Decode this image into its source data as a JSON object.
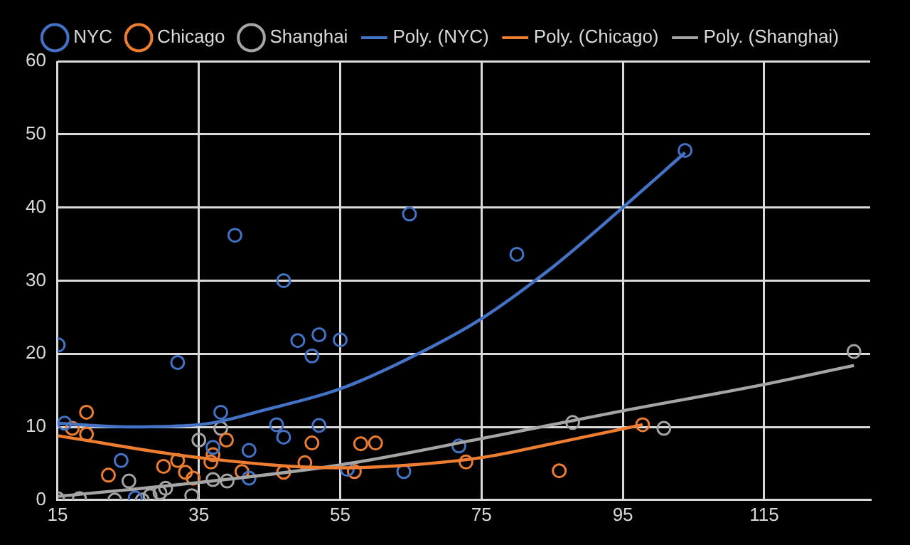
{
  "chart_data": {
    "type": "scatter",
    "xlim": [
      15,
      130
    ],
    "xticks": [
      15,
      35,
      55,
      75,
      95,
      115
    ],
    "ylim": [
      0,
      60
    ],
    "yticks": [
      0,
      10,
      20,
      30,
      40,
      50,
      60
    ],
    "grid": true,
    "legend": "top",
    "series": [
      {
        "name": "NYC",
        "color": "#4472c4",
        "marker": "circle",
        "x": [
          15.1,
          16,
          24,
          26,
          32,
          37,
          38.1,
          40.1,
          42.1,
          42.1,
          46,
          47,
          47,
          49,
          51,
          52,
          52,
          55,
          56,
          64,
          64.8,
          71.8,
          80,
          103.8
        ],
        "values": [
          21.2,
          10.5,
          5.4,
          0.3,
          18.8,
          7.2,
          12,
          36.2,
          6.8,
          3,
          10.3,
          8.6,
          30,
          21.8,
          19.7,
          22.6,
          10.2,
          21.9,
          4.2,
          3.9,
          39.1,
          7.4,
          33.6,
          47.8
        ]
      },
      {
        "name": "Chicago",
        "color": "#ed7d31",
        "marker": "circle",
        "x": [
          17.1,
          19.1,
          19.1,
          22.2,
          30,
          32,
          33.1,
          34.2,
          36.7,
          37,
          38.9,
          41.1,
          47,
          50,
          51,
          57,
          57.9,
          60,
          72.8,
          86,
          97.8
        ],
        "values": [
          9.8,
          12,
          9,
          3.4,
          4.6,
          5.4,
          3.8,
          3,
          5.2,
          6.2,
          8.2,
          3.9,
          3.8,
          5.1,
          7.8,
          3.9,
          7.7,
          7.8,
          5.2,
          4,
          10.3
        ]
      },
      {
        "name": "Shanghai",
        "color": "#a5a5a5",
        "marker": "circle",
        "x": [
          15,
          18.1,
          23.1,
          25.1,
          27,
          28.1,
          29.5,
          30.3,
          34,
          35,
          37,
          38.1,
          39,
          87.9,
          100.8,
          127.7
        ],
        "values": [
          0.2,
          0.2,
          0,
          2.6,
          0,
          0.6,
          1,
          1.6,
          0.6,
          8.2,
          2.8,
          9.8,
          2.6,
          10.6,
          9.8,
          20.3
        ]
      },
      {
        "name": "Poly. (NYC)",
        "type": "line",
        "color": "#4472c4",
        "marker": "none",
        "x": [
          15,
          25,
          35,
          45,
          55,
          65,
          75,
          85,
          95,
          103.8
        ],
        "values": [
          10.5,
          10,
          10.3,
          12.5,
          15.2,
          19.5,
          24.8,
          31.8,
          40,
          47.5
        ]
      },
      {
        "name": "Poly. (Chicago)",
        "type": "line",
        "color": "#ed7d31",
        "marker": "none",
        "x": [
          15,
          35,
          55,
          65,
          75,
          85,
          97.8
        ],
        "values": [
          8.8,
          5.8,
          4.4,
          4.8,
          5.8,
          7.7,
          10.3
        ]
      },
      {
        "name": "Poly. (Shanghai)",
        "type": "line",
        "color": "#a5a5a5",
        "marker": "none",
        "x": [
          15,
          35,
          55,
          75,
          95,
          115,
          127.7
        ],
        "values": [
          0.5,
          2.4,
          4.8,
          8.4,
          12.2,
          15.8,
          18.4
        ]
      }
    ]
  }
}
